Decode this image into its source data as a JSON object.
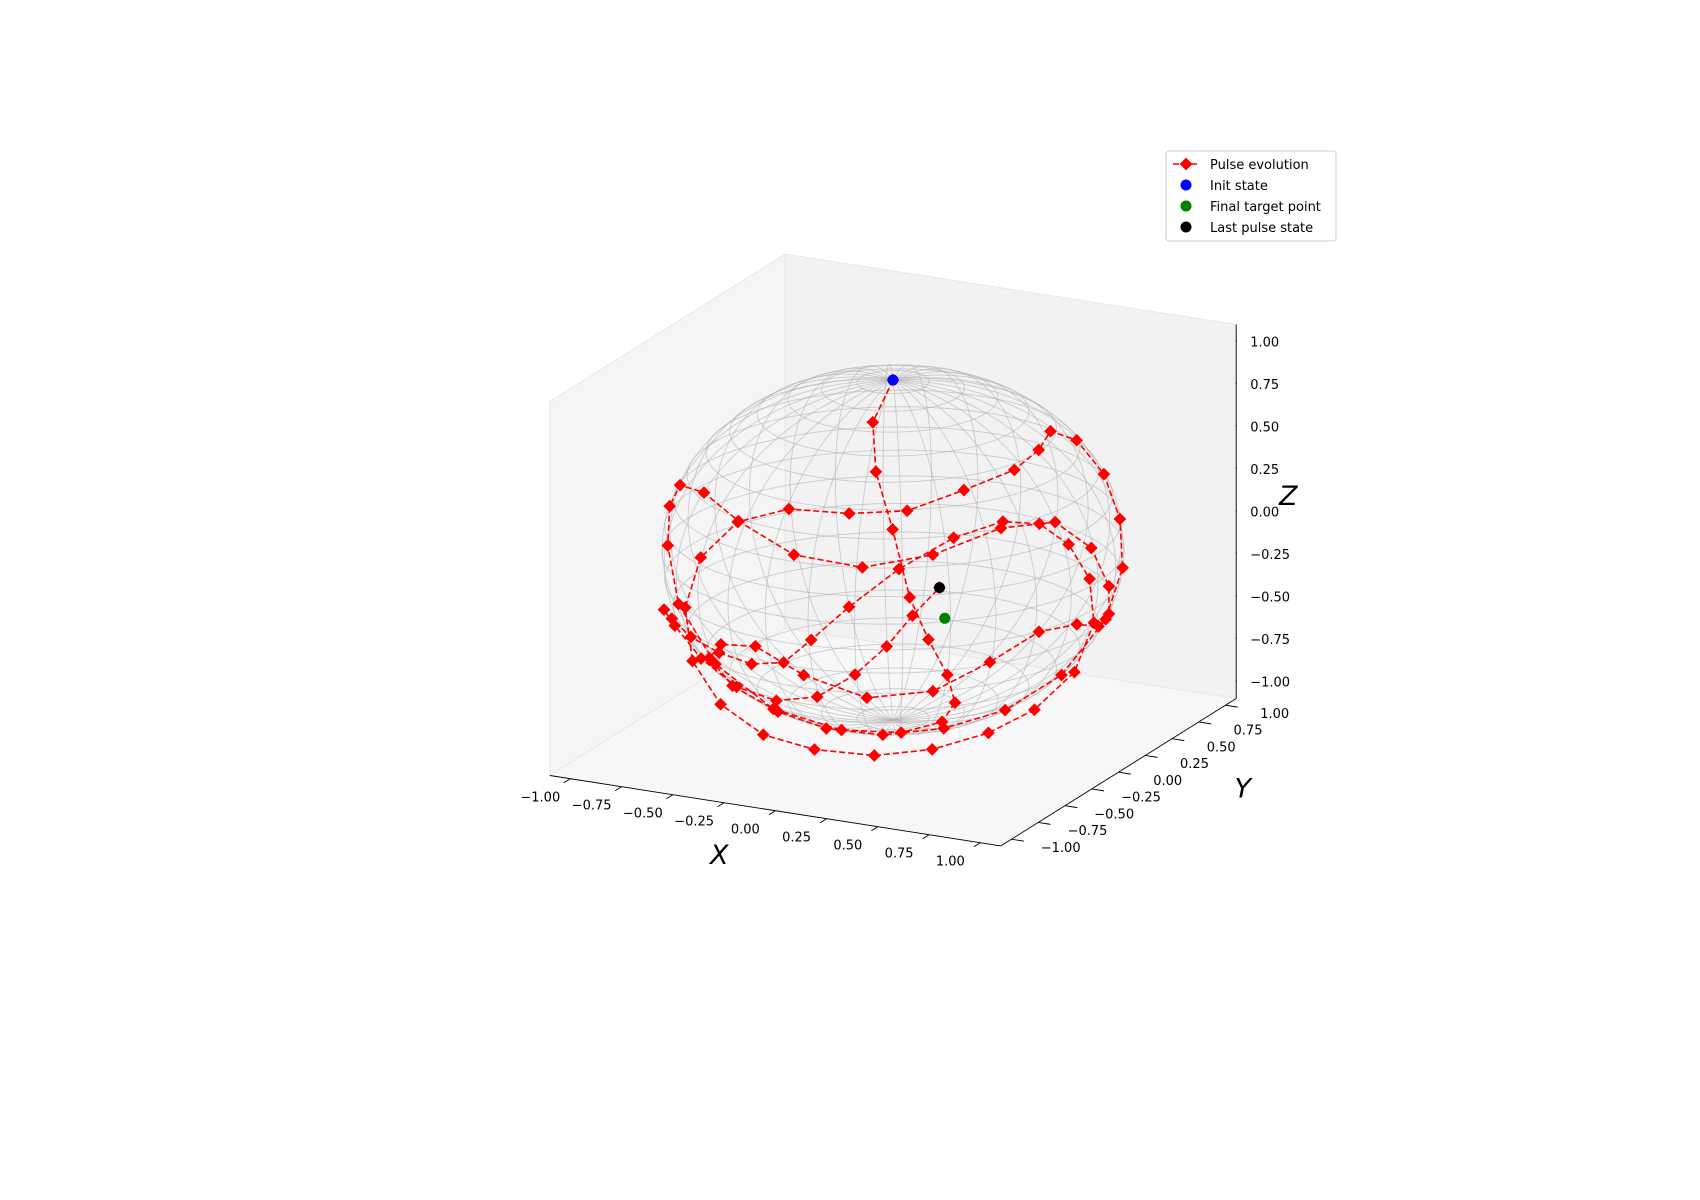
{
  "chart_data": {
    "type": "scatter",
    "projection": "3d",
    "xlabel": "X",
    "ylabel": "Y",
    "zlabel": "Z",
    "xlim": [
      -1.1,
      1.1
    ],
    "ylim": [
      -1.1,
      1.1
    ],
    "zlim": [
      -1.1,
      1.1
    ],
    "x_ticks": [
      "−1.00",
      "−0.75",
      "−0.50",
      "−0.25",
      "0.00",
      "0.25",
      "0.50",
      "0.75",
      "1.00"
    ],
    "y_ticks": [
      "−1.00",
      "−0.75",
      "−0.50",
      "−0.25",
      "0.00",
      "0.25",
      "0.50",
      "0.75",
      "1.00"
    ],
    "z_ticks": [
      "−1.00",
      "−0.75",
      "−0.50",
      "−0.25",
      "0.00",
      "0.25",
      "0.50",
      "0.75",
      "1.00"
    ],
    "tick_values": [
      -1,
      -0.75,
      -0.5,
      -0.25,
      0,
      0.25,
      0.5,
      0.75,
      1
    ],
    "grid": true,
    "legend_position": "upper right",
    "wireframe": "unit sphere (Bloch sphere)",
    "colors": {
      "pulse": "#ff0000",
      "init": "#0000ff",
      "target": "#008000",
      "last": "#000000",
      "wire": "#b0b0b0",
      "pane": "#f2f2f2"
    },
    "series": [
      {
        "name": "Pulse evolution",
        "marker": "diamond",
        "linestyle": "dashed",
        "color": "#ff0000",
        "points": [
          [
            0.0,
            0.0,
            1.0
          ],
          [
            0.1,
            -0.38,
            0.92
          ],
          [
            0.24,
            -0.62,
            0.75
          ],
          [
            0.4,
            -0.77,
            0.5
          ],
          [
            0.52,
            -0.84,
            0.15
          ],
          [
            0.59,
            -0.8,
            -0.1
          ],
          [
            0.63,
            -0.7,
            -0.34
          ],
          [
            0.6,
            -0.57,
            -0.56
          ],
          [
            0.49,
            -0.48,
            -0.73
          ],
          [
            0.28,
            -0.46,
            -0.84
          ],
          [
            0.02,
            -0.52,
            -0.85
          ],
          [
            -0.26,
            -0.62,
            -0.74
          ],
          [
            -0.49,
            -0.72,
            -0.48
          ],
          [
            -0.66,
            -0.74,
            -0.15
          ],
          [
            -0.78,
            -0.61,
            0.12
          ],
          [
            -0.87,
            -0.42,
            0.26
          ],
          [
            -0.95,
            -0.17,
            0.27
          ],
          [
            -0.99,
            0.13,
            0.1
          ],
          [
            -0.93,
            0.34,
            -0.14
          ],
          [
            -0.76,
            0.53,
            -0.38
          ],
          [
            -0.52,
            0.71,
            -0.48
          ],
          [
            -0.26,
            0.87,
            -0.42
          ],
          [
            0.02,
            0.97,
            -0.25
          ],
          [
            0.3,
            0.94,
            -0.15
          ],
          [
            0.55,
            0.8,
            -0.2
          ],
          [
            0.74,
            0.6,
            -0.31
          ],
          [
            0.86,
            0.37,
            -0.36
          ],
          [
            0.94,
            0.12,
            -0.32
          ],
          [
            0.97,
            -0.14,
            -0.2
          ],
          [
            0.91,
            -0.38,
            -0.16
          ],
          [
            0.77,
            -0.57,
            -0.29
          ],
          [
            0.56,
            -0.7,
            -0.45
          ],
          [
            0.3,
            -0.82,
            -0.49
          ],
          [
            0.05,
            -0.93,
            -0.36
          ],
          [
            -0.17,
            -0.96,
            -0.22
          ],
          [
            -0.38,
            -0.88,
            -0.28
          ],
          [
            -0.52,
            -0.72,
            -0.45
          ],
          [
            -0.48,
            -0.58,
            -0.66
          ],
          [
            -0.3,
            -0.5,
            -0.81
          ],
          [
            -0.08,
            -0.47,
            -0.88
          ],
          [
            0.18,
            -0.44,
            -0.88
          ],
          [
            0.42,
            -0.33,
            -0.84
          ],
          [
            0.62,
            -0.14,
            -0.77
          ],
          [
            0.77,
            0.1,
            -0.63
          ],
          [
            0.86,
            0.34,
            -0.38
          ],
          [
            0.88,
            0.46,
            -0.12
          ],
          [
            0.82,
            0.55,
            0.12
          ],
          [
            0.7,
            0.63,
            0.33
          ],
          [
            0.52,
            0.72,
            0.46
          ],
          [
            0.33,
            0.84,
            0.43
          ],
          [
            0.22,
            0.94,
            0.26
          ],
          [
            0.08,
            0.98,
            0.1
          ],
          [
            -0.15,
            0.95,
            -0.05
          ],
          [
            -0.38,
            0.86,
            -0.18
          ],
          [
            -0.6,
            0.74,
            -0.19
          ],
          [
            -0.8,
            0.56,
            -0.13
          ],
          [
            -0.93,
            0.33,
            -0.14
          ],
          [
            -0.98,
            0.08,
            -0.26
          ],
          [
            -0.93,
            -0.16,
            -0.45
          ],
          [
            -0.79,
            -0.36,
            -0.66
          ],
          [
            -0.58,
            -0.5,
            -0.82
          ],
          [
            -0.33,
            -0.58,
            -0.92
          ],
          [
            -0.08,
            -0.58,
            -0.96
          ],
          [
            0.18,
            -0.52,
            -0.97
          ],
          [
            0.4,
            -0.4,
            -0.94
          ],
          [
            0.58,
            -0.22,
            -0.88
          ],
          [
            0.7,
            -0.02,
            -0.8
          ],
          [
            0.77,
            0.22,
            -0.66
          ],
          [
            0.74,
            0.46,
            -0.47
          ],
          [
            0.63,
            0.63,
            -0.3
          ],
          [
            0.46,
            0.76,
            -0.18
          ],
          [
            0.26,
            0.87,
            -0.14
          ],
          [
            0.04,
            0.95,
            -0.2
          ],
          [
            -0.2,
            0.95,
            -0.34
          ],
          [
            -0.42,
            0.86,
            -0.53
          ],
          [
            -0.58,
            0.7,
            -0.72
          ],
          [
            -0.66,
            0.5,
            -0.85
          ],
          [
            -0.68,
            0.28,
            -0.9
          ],
          [
            -0.71,
            0.04,
            -0.82
          ],
          [
            -0.77,
            -0.15,
            -0.69
          ],
          [
            -0.83,
            -0.3,
            -0.55
          ],
          [
            -0.86,
            -0.42,
            -0.4
          ],
          [
            -0.83,
            -0.55,
            -0.29
          ],
          [
            -0.72,
            -0.66,
            -0.32
          ],
          [
            -0.55,
            -0.74,
            -0.45
          ],
          [
            -0.34,
            -0.81,
            -0.55
          ],
          [
            -0.12,
            -0.86,
            -0.57
          ],
          [
            0.1,
            -0.9,
            -0.49
          ],
          [
            0.3,
            -0.93,
            -0.31
          ],
          [
            0.46,
            -0.94,
            -0.11
          ],
          [
            0.57,
            -0.91,
            0.08
          ],
          [
            0.66,
            -0.83,
            0.23
          ]
        ]
      },
      {
        "name": "Init state",
        "marker": "circle",
        "color": "#0000ff",
        "points": [
          [
            0.0,
            0.0,
            1.0
          ]
        ]
      },
      {
        "name": "Final target point",
        "marker": "circle",
        "color": "#008000",
        "points": [
          [
            0.66,
            -0.78,
            0.03
          ]
        ]
      },
      {
        "name": "Last pulse state",
        "marker": "circle",
        "color": "#000000",
        "points": [
          [
            0.66,
            -0.83,
            0.23
          ]
        ]
      }
    ]
  }
}
